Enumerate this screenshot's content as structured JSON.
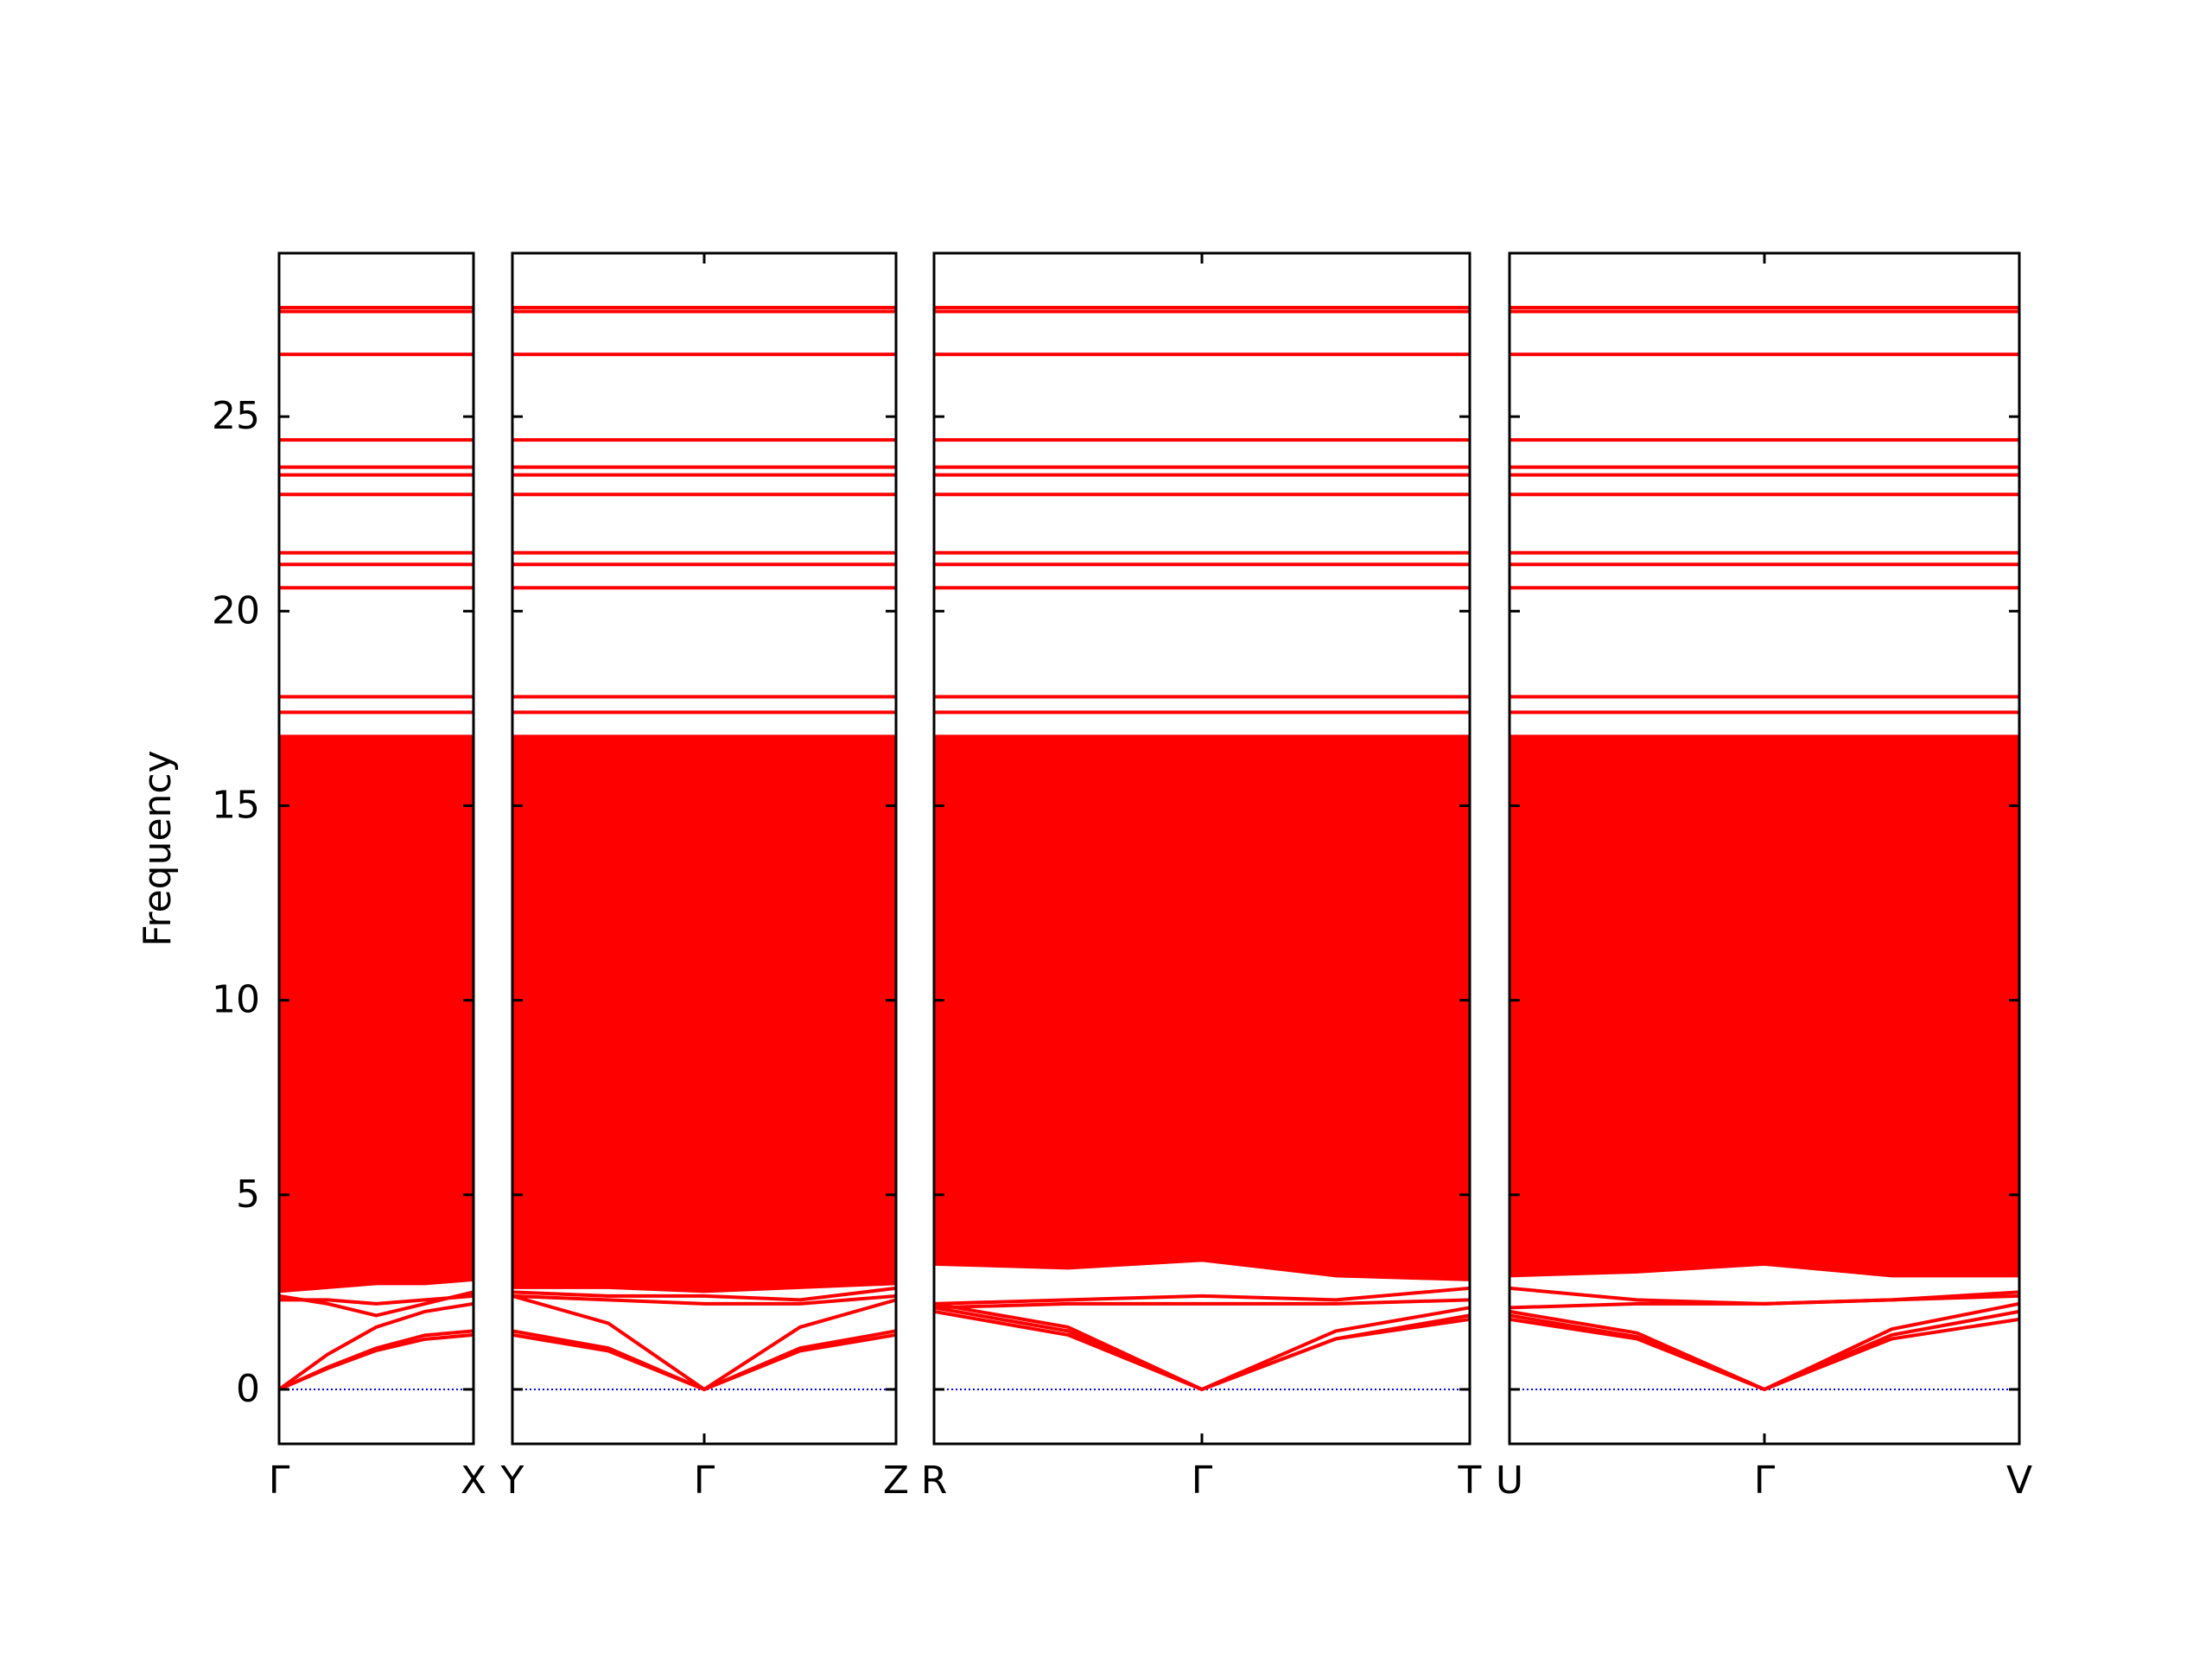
{
  "chart_data": {
    "type": "band",
    "ylabel": "Frequency",
    "ylim": [
      -1.4,
      29.2
    ],
    "yticks": [
      0,
      5,
      10,
      15,
      20,
      25
    ],
    "color": "#ff0000",
    "zero_line": 0,
    "zero_line_color": "#0000ff",
    "flat_bands": [
      27.8,
      27.7,
      26.6,
      24.4,
      23.7,
      23.5,
      23.0,
      21.5,
      21.2,
      20.6,
      17.8,
      17.4
    ],
    "panels": [
      {
        "xlim": [
          0,
          1
        ],
        "xticks": [
          {
            "value": 0,
            "label": "Γ"
          },
          {
            "value": 1,
            "label": "X"
          }
        ],
        "x": [
          0,
          0.25,
          0.5,
          0.75,
          1
        ],
        "lower": [
          2.5,
          2.6,
          2.7,
          2.7,
          2.8
        ],
        "upper": [
          16.8,
          16.8,
          16.8,
          16.8,
          16.8
        ],
        "bands": [
          [
            0,
            0.54,
            1.0,
            1.29,
            1.4
          ],
          [
            0,
            0.57,
            1.06,
            1.39,
            1.5
          ],
          [
            0,
            0.9,
            1.6,
            2.0,
            2.2
          ],
          [
            2.4,
            2.2,
            1.9,
            2.2,
            2.5
          ],
          [
            2.3,
            2.3,
            2.2,
            2.3,
            2.4
          ]
        ]
      },
      {
        "xlim": [
          0,
          1
        ],
        "xticks": [
          {
            "value": 0,
            "label": "Y"
          },
          {
            "value": 0.5,
            "label": "Γ"
          },
          {
            "value": 1,
            "label": "Z"
          }
        ],
        "x": [
          0,
          0.25,
          0.5,
          0.75,
          1
        ],
        "lower": [
          2.6,
          2.6,
          2.5,
          2.6,
          2.7
        ],
        "upper": [
          16.8,
          16.8,
          16.8,
          16.8,
          16.8
        ],
        "bands": [
          [
            1.5,
            1.06,
            0,
            1.06,
            1.5
          ],
          [
            1.4,
            0.99,
            0,
            0.99,
            1.4
          ],
          [
            2.4,
            1.7,
            0,
            1.6,
            2.3
          ],
          [
            2.5,
            2.4,
            2.4,
            2.3,
            2.6
          ],
          [
            2.4,
            2.3,
            2.2,
            2.2,
            2.4
          ]
        ]
      },
      {
        "xlim": [
          0,
          1
        ],
        "xticks": [
          {
            "value": 0,
            "label": "R"
          },
          {
            "value": 0.5,
            "label": "Γ"
          },
          {
            "value": 1,
            "label": "T"
          }
        ],
        "x": [
          0,
          0.25,
          0.5,
          0.75,
          1
        ],
        "lower": [
          3.2,
          3.1,
          3.3,
          2.9,
          2.8
        ],
        "upper": [
          16.8,
          16.8,
          16.8,
          16.8,
          16.8
        ],
        "bands": [
          [
            2.1,
            1.5,
            0,
            1.3,
            1.8
          ],
          [
            2.0,
            1.4,
            0,
            1.3,
            1.9
          ],
          [
            2.2,
            1.6,
            0,
            1.5,
            2.1
          ],
          [
            2.2,
            2.3,
            2.4,
            2.3,
            2.6
          ],
          [
            2.1,
            2.2,
            2.2,
            2.2,
            2.3
          ]
        ]
      },
      {
        "xlim": [
          0,
          1
        ],
        "xticks": [
          {
            "value": 0,
            "label": "U"
          },
          {
            "value": 0.5,
            "label": "Γ"
          },
          {
            "value": 1,
            "label": "V"
          }
        ],
        "x": [
          0,
          0.25,
          0.5,
          0.75,
          1
        ],
        "lower": [
          2.9,
          3.0,
          3.2,
          2.9,
          2.9
        ],
        "upper": [
          16.8,
          16.8,
          16.8,
          16.8,
          16.8
        ],
        "bands": [
          [
            1.8,
            1.3,
            0,
            1.3,
            1.8
          ],
          [
            1.9,
            1.35,
            0,
            1.4,
            2.0
          ],
          [
            2.0,
            1.45,
            0,
            1.55,
            2.2
          ],
          [
            2.6,
            2.3,
            2.2,
            2.3,
            2.5
          ],
          [
            2.1,
            2.2,
            2.2,
            2.3,
            2.4
          ]
        ]
      }
    ]
  }
}
